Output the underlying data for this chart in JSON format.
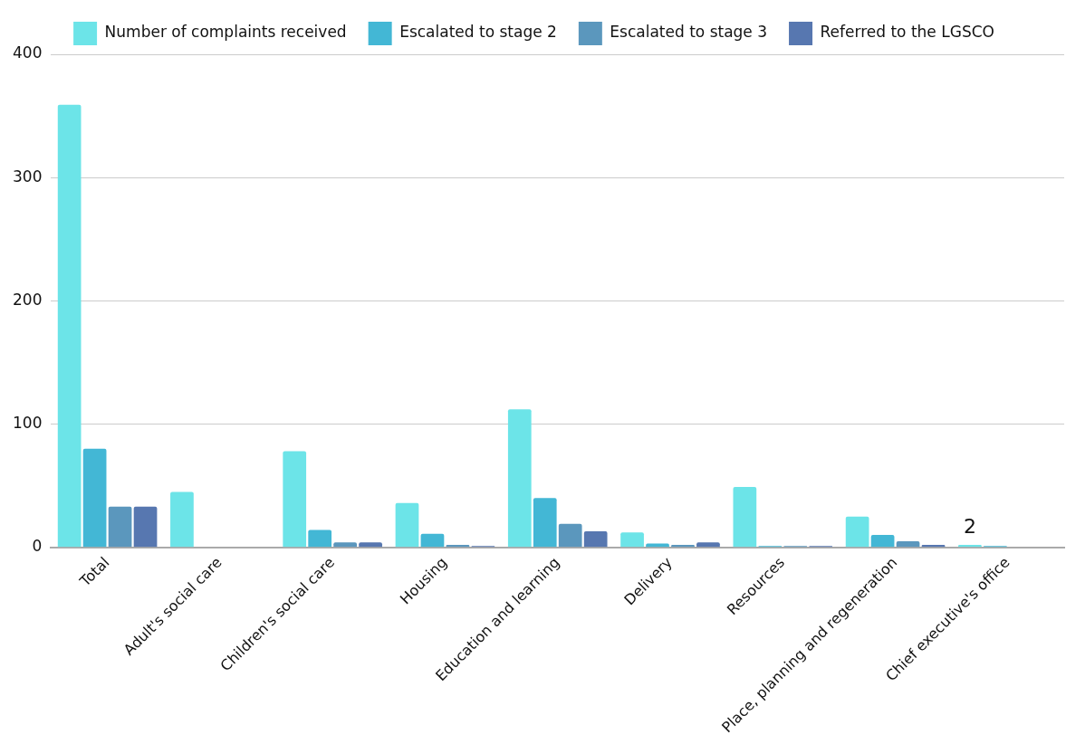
{
  "chart_data": {
    "type": "bar",
    "categories": [
      "Total",
      "Adult's social care",
      "Children's social care",
      "Housing",
      "Education and learning",
      "Delivery",
      "Resources",
      "Place, planning and regeneration",
      "Chief executive's office"
    ],
    "series": [
      {
        "name": "Number of complaints received",
        "color": "#6ce4e8",
        "values": [
          359,
          45,
          78,
          36,
          112,
          12,
          49,
          25,
          2
        ],
        "value_labels": [
          null,
          null,
          null,
          null,
          null,
          null,
          null,
          null,
          "2"
        ]
      },
      {
        "name": "Escalated to stage 2",
        "color": "#43b7d5",
        "values": [
          80,
          0,
          14,
          11,
          40,
          3,
          1,
          10,
          1
        ]
      },
      {
        "name": "Escalated to stage 3",
        "color": "#5b97bd",
        "values": [
          33,
          0,
          4,
          2,
          19,
          2,
          1,
          5,
          0
        ]
      },
      {
        "name": "Referred to the LGSCO",
        "color": "#5777b0",
        "values": [
          33,
          0,
          4,
          1,
          13,
          4,
          1,
          2,
          0
        ]
      }
    ],
    "ylim": [
      0,
      400
    ],
    "yticks": [
      0,
      100,
      200,
      300,
      400
    ],
    "grid": "y",
    "legend": "top"
  }
}
